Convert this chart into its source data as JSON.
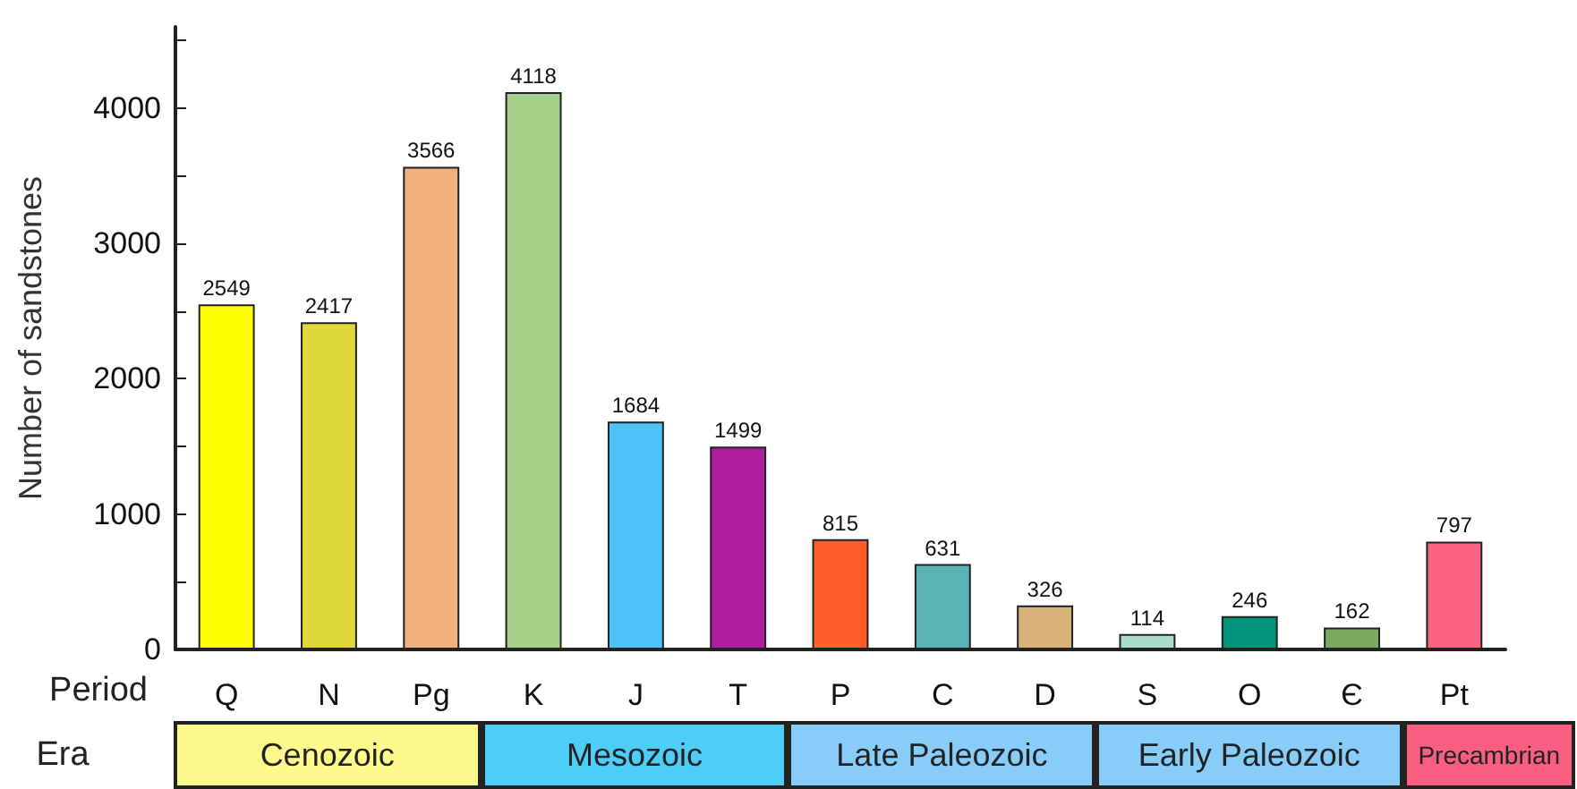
{
  "chart_data": {
    "type": "bar",
    "ylabel": "Number of sandstones",
    "xlabel": "Period",
    "annotations": [
      "Era",
      "Cenozoic",
      "Mesozoic",
      "Late Paleozoic",
      "Early Paleozoic",
      "Precambrian"
    ],
    "categories": [
      "Q",
      "N",
      "Pg",
      "K",
      "J",
      "T",
      "P",
      "C",
      "D",
      "S",
      "O",
      "Є",
      "Pt"
    ],
    "values": [
      2549,
      2417,
      3566,
      4118,
      1684,
      1499,
      815,
      631,
      326,
      114,
      246,
      162,
      797
    ],
    "colors": [
      "#ffff00",
      "#e0d83a",
      "#f2b07f",
      "#a6d08a",
      "#4dc3f7",
      "#b01ea0",
      "#ff5e2a",
      "#5ab4b4",
      "#d9b27a",
      "#a8dcc8",
      "#00957a",
      "#7aaa62",
      "#fb6383"
    ],
    "data_labels": true,
    "ylim": [
      0,
      4600
    ],
    "yticks": [
      0,
      {
        "value": 500,
        "label": null
      },
      1000,
      {
        "value": 1500,
        "label": null
      },
      2000,
      {
        "value": 2500,
        "label": null
      },
      3000,
      {
        "value": 3500,
        "label": null
      },
      4000,
      {
        "value": 4500,
        "label": null
      }
    ],
    "grid": false
  }
}
